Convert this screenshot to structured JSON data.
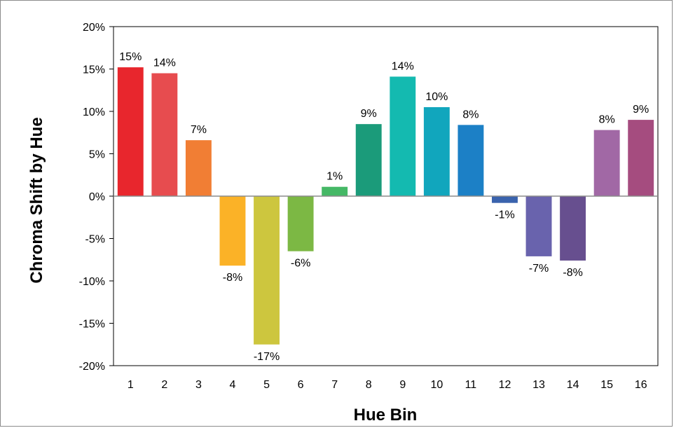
{
  "chart_data": {
    "type": "bar",
    "xlabel": "Hue Bin",
    "ylabel": "Chroma Shift by Hue",
    "ylim": [
      -20,
      20
    ],
    "y_ticks": [
      "-20%",
      "-15%",
      "-10%",
      "-5%",
      "0%",
      "5%",
      "10%",
      "15%",
      "20%"
    ],
    "grid": false,
    "legend": "none",
    "categories": [
      "1",
      "2",
      "3",
      "4",
      "5",
      "6",
      "7",
      "8",
      "9",
      "10",
      "11",
      "12",
      "13",
      "14",
      "15",
      "16"
    ],
    "values": [
      15.2,
      14.5,
      6.6,
      -8.2,
      -17.5,
      -6.5,
      1.1,
      8.5,
      14.1,
      10.5,
      8.4,
      -0.8,
      -7.1,
      -7.6,
      7.8,
      9.0
    ],
    "data_labels": [
      "15%",
      "14%",
      "7%",
      "-8%",
      "-17%",
      "-6%",
      "1%",
      "9%",
      "14%",
      "10%",
      "8%",
      "-1%",
      "-7%",
      "-8%",
      "8%",
      "9%"
    ],
    "colors": [
      "#e8262d",
      "#e74c4f",
      "#f17e34",
      "#fbb227",
      "#cdc63e",
      "#7cb844",
      "#45b866",
      "#1b9b7a",
      "#14bab0",
      "#11a6bd",
      "#1c80c6",
      "#3a63ad",
      "#6963ad",
      "#674f8f",
      "#a168a5",
      "#a54c7f"
    ]
  }
}
